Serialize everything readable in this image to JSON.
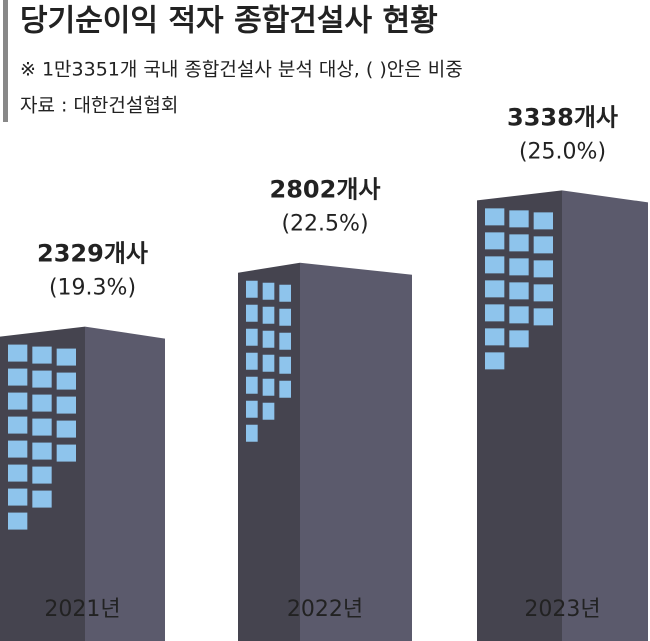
{
  "chart_data": {
    "type": "bar",
    "title": "당기순이익 적자 종합건설사 현황",
    "note": "※ 1만3351개 국내 종합건설사 분석 대상, (   )안은 비중",
    "source": "자료 : 대한건설협회",
    "categories": [
      "2021년",
      "2022년",
      "2023년"
    ],
    "values": [
      2329,
      2802,
      3338
    ],
    "value_labels": [
      "2329개사",
      "2802개사",
      "3338개사"
    ],
    "shares": {
      "values": [
        19.3,
        22.5,
        25.0
      ],
      "value_labels": [
        "(19.3%)",
        "(22.5%)",
        "(25.0%)"
      ]
    },
    "colors": {
      "front": "#45444f",
      "side": "#5b5a6c",
      "window": "#8ec4ec"
    }
  }
}
